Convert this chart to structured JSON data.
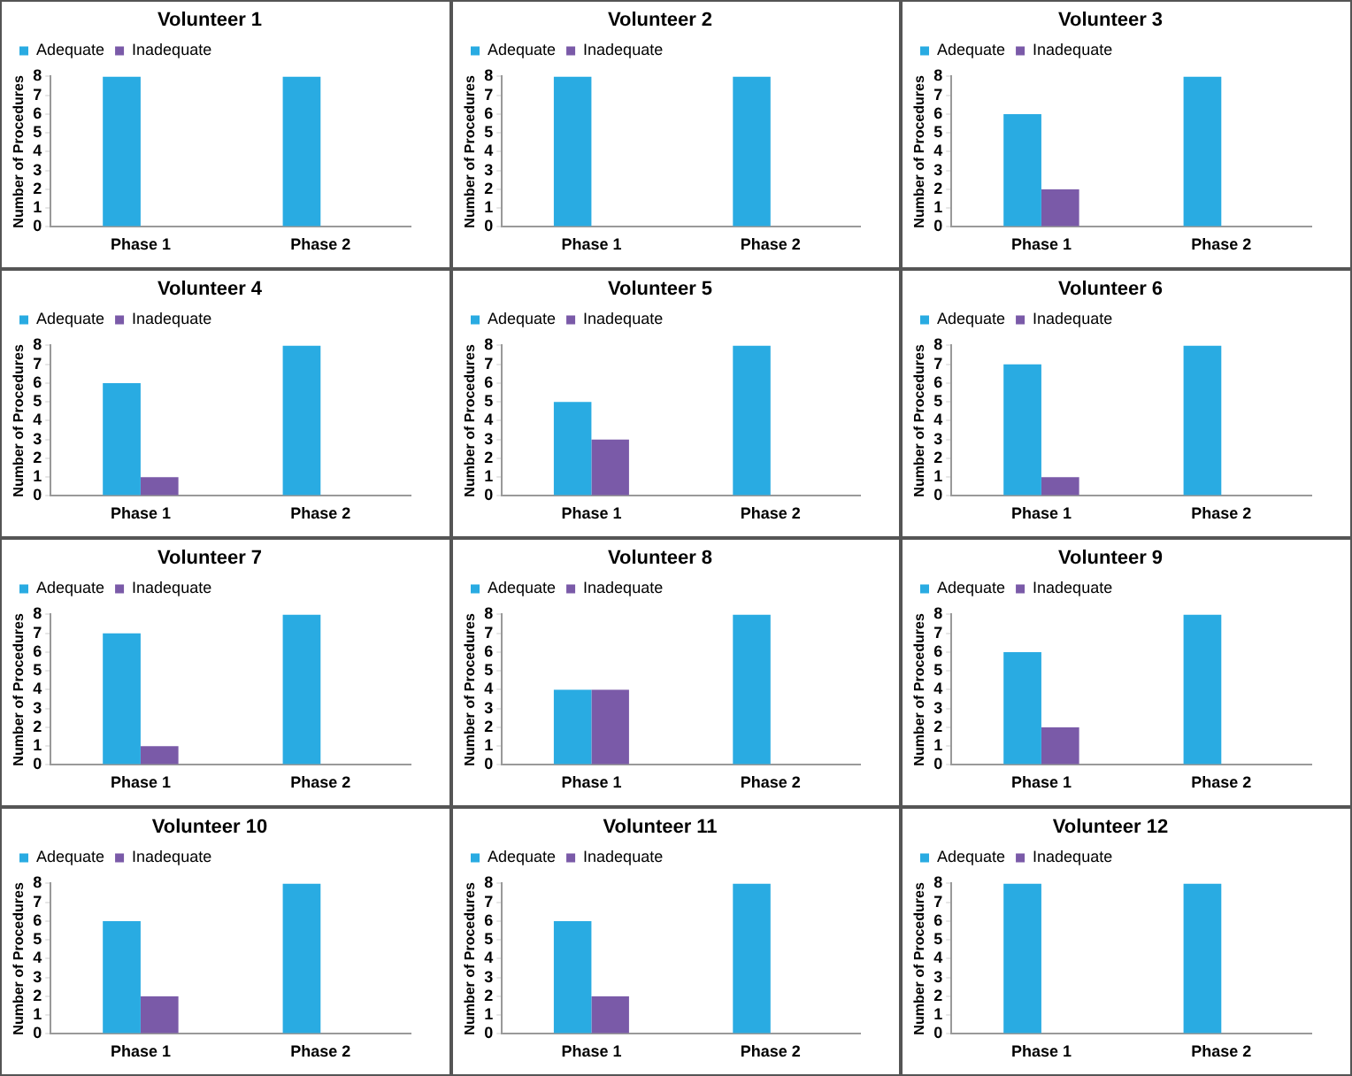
{
  "chart_data": [
    {
      "type": "bar",
      "title": "Volunteer 1",
      "ylabel": "Number of Procedures",
      "categories": [
        "Phase 1",
        "Phase 2"
      ],
      "series": [
        {
          "name": "Adequate",
          "color": "#29abe2",
          "values": [
            8,
            8
          ]
        },
        {
          "name": "Inadequate",
          "color": "#7a5aa8",
          "values": [
            0,
            0
          ]
        }
      ],
      "ylim": [
        0,
        8
      ],
      "yticks": [
        0,
        1,
        2,
        3,
        4,
        5,
        6,
        7,
        8
      ],
      "legend": "top left"
    },
    {
      "type": "bar",
      "title": "Volunteer 2",
      "ylabel": "Number of Procedures",
      "categories": [
        "Phase 1",
        "Phase 2"
      ],
      "series": [
        {
          "name": "Adequate",
          "color": "#29abe2",
          "values": [
            8,
            8
          ]
        },
        {
          "name": "Inadequate",
          "color": "#7a5aa8",
          "values": [
            0,
            0
          ]
        }
      ],
      "ylim": [
        0,
        8
      ],
      "yticks": [
        0,
        1,
        2,
        3,
        4,
        5,
        6,
        7,
        8
      ],
      "legend": "top left"
    },
    {
      "type": "bar",
      "title": "Volunteer 3",
      "ylabel": "Number of Procedures",
      "categories": [
        "Phase 1",
        "Phase 2"
      ],
      "series": [
        {
          "name": "Adequate",
          "color": "#29abe2",
          "values": [
            6,
            8
          ]
        },
        {
          "name": "Inadequate",
          "color": "#7a5aa8",
          "values": [
            2,
            0
          ]
        }
      ],
      "ylim": [
        0,
        8
      ],
      "yticks": [
        0,
        1,
        2,
        3,
        4,
        5,
        6,
        7,
        8
      ],
      "legend": "top left"
    },
    {
      "type": "bar",
      "title": "Volunteer 4",
      "ylabel": "Number of Procedures",
      "categories": [
        "Phase 1",
        "Phase 2"
      ],
      "series": [
        {
          "name": "Adequate",
          "color": "#29abe2",
          "values": [
            6,
            8
          ]
        },
        {
          "name": "Inadequate",
          "color": "#7a5aa8",
          "values": [
            1,
            0
          ]
        }
      ],
      "ylim": [
        0,
        8
      ],
      "yticks": [
        0,
        1,
        2,
        3,
        4,
        5,
        6,
        7,
        8
      ],
      "legend": "top left"
    },
    {
      "type": "bar",
      "title": "Volunteer 5",
      "ylabel": "Number of Procedures",
      "categories": [
        "Phase 1",
        "Phase 2"
      ],
      "series": [
        {
          "name": "Adequate",
          "color": "#29abe2",
          "values": [
            5,
            8
          ]
        },
        {
          "name": "Inadequate",
          "color": "#7a5aa8",
          "values": [
            3,
            0
          ]
        }
      ],
      "ylim": [
        0,
        8
      ],
      "yticks": [
        0,
        1,
        2,
        3,
        4,
        5,
        6,
        7,
        8
      ],
      "legend": "top left"
    },
    {
      "type": "bar",
      "title": "Volunteer 6",
      "ylabel": "Number of Procedures",
      "categories": [
        "Phase 1",
        "Phase 2"
      ],
      "series": [
        {
          "name": "Adequate",
          "color": "#29abe2",
          "values": [
            7,
            8
          ]
        },
        {
          "name": "Inadequate",
          "color": "#7a5aa8",
          "values": [
            1,
            0
          ]
        }
      ],
      "ylim": [
        0,
        8
      ],
      "yticks": [
        0,
        1,
        2,
        3,
        4,
        5,
        6,
        7,
        8
      ],
      "legend": "top left"
    },
    {
      "type": "bar",
      "title": "Volunteer 7",
      "ylabel": "Number of Procedures",
      "categories": [
        "Phase 1",
        "Phase 2"
      ],
      "series": [
        {
          "name": "Adequate",
          "color": "#29abe2",
          "values": [
            7,
            8
          ]
        },
        {
          "name": "Inadequate",
          "color": "#7a5aa8",
          "values": [
            1,
            0
          ]
        }
      ],
      "ylim": [
        0,
        8
      ],
      "yticks": [
        0,
        1,
        2,
        3,
        4,
        5,
        6,
        7,
        8
      ],
      "legend": "top left"
    },
    {
      "type": "bar",
      "title": "Volunteer 8",
      "ylabel": "Number of Procedures",
      "categories": [
        "Phase 1",
        "Phase 2"
      ],
      "series": [
        {
          "name": "Adequate",
          "color": "#29abe2",
          "values": [
            4,
            8
          ]
        },
        {
          "name": "Inadequate",
          "color": "#7a5aa8",
          "values": [
            4,
            0
          ]
        }
      ],
      "ylim": [
        0,
        8
      ],
      "yticks": [
        0,
        1,
        2,
        3,
        4,
        5,
        6,
        7,
        8
      ],
      "legend": "top left"
    },
    {
      "type": "bar",
      "title": "Volunteer 9",
      "ylabel": "Number of Procedures",
      "categories": [
        "Phase 1",
        "Phase 2"
      ],
      "series": [
        {
          "name": "Adequate",
          "color": "#29abe2",
          "values": [
            6,
            8
          ]
        },
        {
          "name": "Inadequate",
          "color": "#7a5aa8",
          "values": [
            2,
            0
          ]
        }
      ],
      "ylim": [
        0,
        8
      ],
      "yticks": [
        0,
        1,
        2,
        3,
        4,
        5,
        6,
        7,
        8
      ],
      "legend": "top left"
    },
    {
      "type": "bar",
      "title": "Volunteer 10",
      "ylabel": "Number of Procedures",
      "categories": [
        "Phase 1",
        "Phase 2"
      ],
      "series": [
        {
          "name": "Adequate",
          "color": "#29abe2",
          "values": [
            6,
            8
          ]
        },
        {
          "name": "Inadequate",
          "color": "#7a5aa8",
          "values": [
            2,
            0
          ]
        }
      ],
      "ylim": [
        0,
        8
      ],
      "yticks": [
        0,
        1,
        2,
        3,
        4,
        5,
        6,
        7,
        8
      ],
      "legend": "top left"
    },
    {
      "type": "bar",
      "title": "Volunteer 11",
      "ylabel": "Number of Procedures",
      "categories": [
        "Phase 1",
        "Phase 2"
      ],
      "series": [
        {
          "name": "Adequate",
          "color": "#29abe2",
          "values": [
            6,
            8
          ]
        },
        {
          "name": "Inadequate",
          "color": "#7a5aa8",
          "values": [
            2,
            0
          ]
        }
      ],
      "ylim": [
        0,
        8
      ],
      "yticks": [
        0,
        1,
        2,
        3,
        4,
        5,
        6,
        7,
        8
      ],
      "legend": "top left"
    },
    {
      "type": "bar",
      "title": "Volunteer 12",
      "ylabel": "Number of Procedures",
      "categories": [
        "Phase 1",
        "Phase 2"
      ],
      "series": [
        {
          "name": "Adequate",
          "color": "#29abe2",
          "values": [
            8,
            8
          ]
        },
        {
          "name": "Inadequate",
          "color": "#7a5aa8",
          "values": [
            0,
            0
          ]
        }
      ],
      "ylim": [
        0,
        8
      ],
      "yticks": [
        0,
        1,
        2,
        3,
        4,
        5,
        6,
        7,
        8
      ],
      "legend": "top left"
    }
  ]
}
